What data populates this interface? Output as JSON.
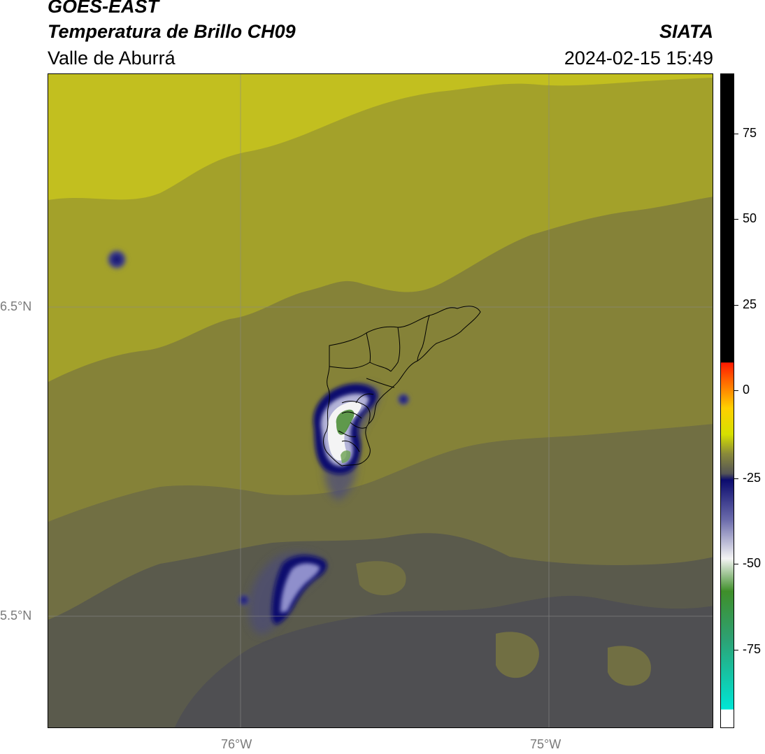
{
  "header": {
    "satellite": "GOES-EAST",
    "product": "Temperatura de Brillo CH09",
    "region": "Valle de Aburrá",
    "brand": "SIATA",
    "timestamp": "2024-02-15 15:49"
  },
  "map": {
    "lat_labels": [
      "6.5°N",
      "5.5°N"
    ],
    "lon_labels": [
      "76°W",
      "75°W"
    ],
    "colors": {
      "yellow_warm": "#c2bf1f",
      "olive": "#a3a12a",
      "olive_dark": "#858238",
      "olive_grey": "#716f43",
      "grey_dark": "#5a5a4c",
      "grey_darker": "#4f4f52",
      "navy": "#0b0b6e",
      "lavender": "#b4b4d8",
      "white": "#f4f4f4",
      "green": "#4f8f3a",
      "boundary": "#000000"
    }
  },
  "colorbar": {
    "ticks": [
      "75",
      "50",
      "25",
      "0",
      "-25",
      "-50",
      "-75"
    ]
  }
}
